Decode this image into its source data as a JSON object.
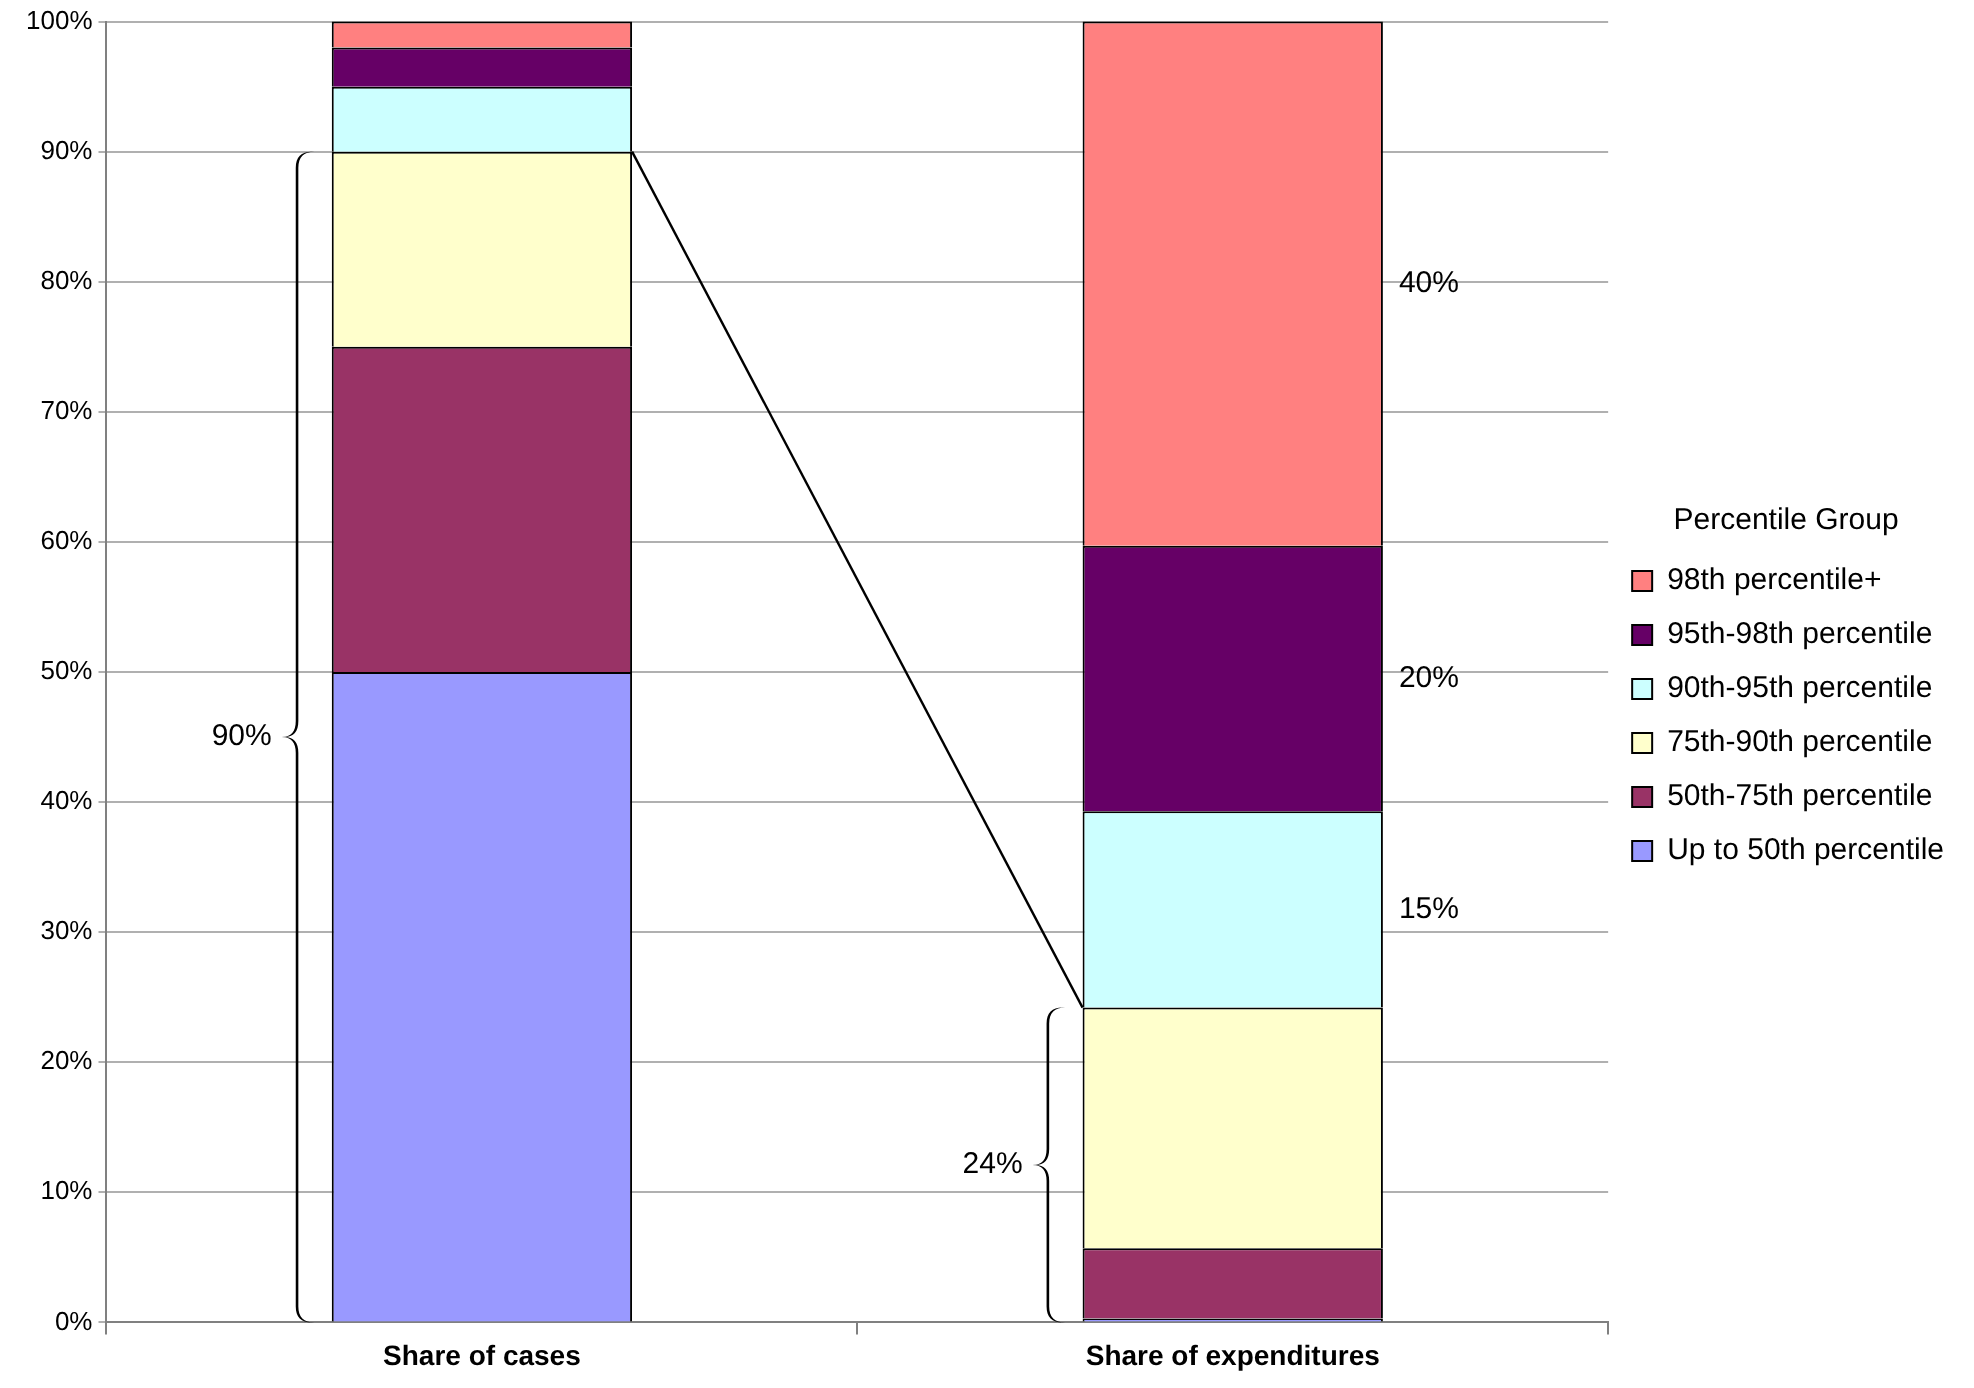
{
  "chart_data": {
    "type": "bar",
    "stacked": true,
    "categories": [
      "Share of cases",
      "Share of expenditures"
    ],
    "series": [
      {
        "name": "Up to 50th percentile",
        "color": "#9999ff",
        "values": [
          50,
          0.3
        ]
      },
      {
        "name": "50th-75th percentile",
        "color": "#993366",
        "values": [
          25,
          5.4
        ]
      },
      {
        "name": "75th-90th percentile",
        "color": "#ffffcc",
        "values": [
          15,
          18.5
        ]
      },
      {
        "name": "90th-95th percentile",
        "color": "#ccffff",
        "values": [
          5,
          15.1
        ]
      },
      {
        "name": "95th-98th percentile",
        "color": "#660066",
        "values": [
          3,
          20.4
        ]
      },
      {
        "name": "98th percentile+",
        "color": "#ff8080",
        "values": [
          2,
          40.3
        ]
      }
    ],
    "ylim": [
      0,
      100
    ],
    "yticks": [
      {
        "value": 0,
        "label": "0%"
      },
      {
        "value": 10,
        "label": "10%"
      },
      {
        "value": 20,
        "label": "20%"
      },
      {
        "value": 30,
        "label": "30%"
      },
      {
        "value": 40,
        "label": "40%"
      },
      {
        "value": 50,
        "label": "50%"
      },
      {
        "value": 60,
        "label": "60%"
      },
      {
        "value": 70,
        "label": "70%"
      },
      {
        "value": 80,
        "label": "80%"
      },
      {
        "value": 90,
        "label": "90%"
      },
      {
        "value": 100,
        "label": "100%"
      }
    ],
    "grid": "y",
    "legend": "right",
    "legend_title": "Percentile Group",
    "annotations": [
      "90%",
      "24%",
      "15%",
      "20%",
      "40%"
    ]
  }
}
